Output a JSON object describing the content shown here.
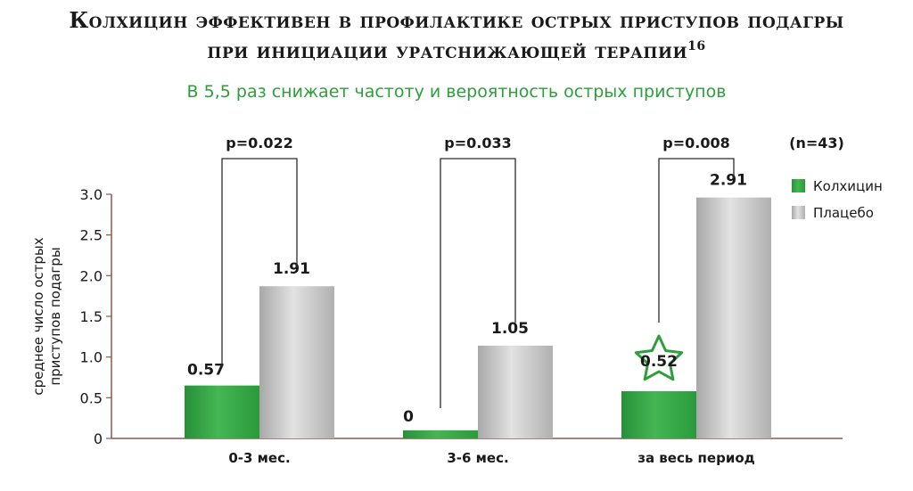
{
  "header": {
    "title_line1": "Колхицин эффективен в профилактике острых приступов подагры",
    "title_line2": "при инициации уратснижающей терапии",
    "footnote": "16",
    "subtitle": "В 5,5 раз снижает частоту и вероятность острых приступов"
  },
  "colors": {
    "colchicine": "#2f9e3e",
    "placebo": "#b3b3b3",
    "axis": "#8a5a4a",
    "accent": "#2e9e3c"
  },
  "chart_data": {
    "type": "bar",
    "ylabel": "среднее число острых приступов подагры",
    "ylim": [
      0,
      3.0
    ],
    "yticks": [
      "0",
      "0.5",
      "1.0",
      "1.5",
      "2.0",
      "2.5",
      "3.0"
    ],
    "categories": [
      "0-3 мес.",
      "3-6 мес.",
      "за весь период"
    ],
    "series": [
      {
        "name": "Колхицин",
        "values": [
          0.57,
          0,
          0.52
        ],
        "display_values": [
          0.65,
          0.1,
          0.58
        ],
        "labels": [
          "0.57",
          "0",
          "0.52"
        ]
      },
      {
        "name": "Плацебо",
        "values": [
          1.91,
          1.05,
          2.91
        ],
        "display_values": [
          1.87,
          1.14,
          2.96
        ],
        "labels": [
          "1.91",
          "1.05",
          "2.91"
        ]
      }
    ],
    "pvalues": [
      "p=0.022",
      "p=0.033",
      "p=0.008"
    ],
    "sample_size": "(n=43)",
    "highlighted_bar": "за весь период / Колхицин",
    "legend_position": "right"
  }
}
